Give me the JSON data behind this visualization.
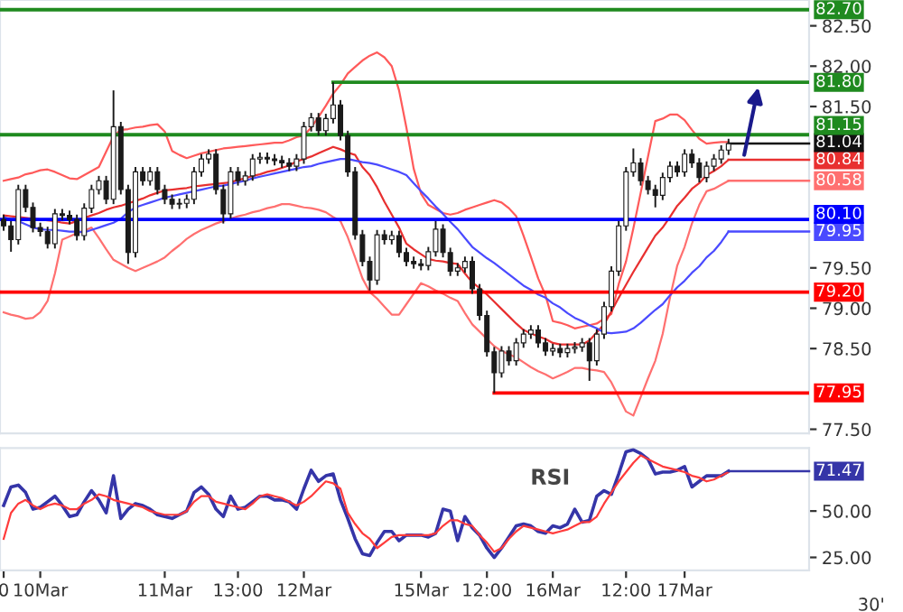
{
  "chart_data": [
    {
      "type": "candlestick",
      "tick_labels": "y",
      "categories": [
        null,
        null,
        null,
        null,
        null,
        null,
        null,
        null,
        null,
        null,
        null,
        null,
        null,
        null,
        null,
        null,
        null,
        null,
        null,
        null,
        null,
        null,
        null,
        null,
        null,
        null,
        null,
        null,
        null,
        null,
        null,
        null,
        null,
        null,
        null,
        null,
        null,
        null,
        null,
        null,
        null,
        null,
        null,
        null,
        null,
        null,
        null,
        null,
        null,
        null,
        null,
        null,
        null,
        null,
        null,
        null,
        null,
        null,
        null,
        null,
        null,
        null,
        null,
        null,
        null,
        null,
        null,
        null,
        null,
        null,
        null,
        null,
        null,
        null,
        null,
        null,
        null,
        null,
        null,
        null,
        null,
        null,
        null,
        null,
        null,
        null,
        null,
        null,
        null,
        null,
        null,
        null,
        null,
        null,
        null,
        null,
        null,
        null,
        null,
        null
      ],
      "ylim": [
        77.45,
        82.82
      ],
      "yticks": [
        {
          "value": 77.5,
          "label": "77.50"
        },
        {
          "value": 78.5,
          "label": "78.50"
        },
        {
          "value": 79.0,
          "label": "79.00"
        },
        {
          "value": 79.5,
          "label": "79.50"
        },
        {
          "value": 81.5,
          "label": "81.50"
        },
        {
          "value": 82.0,
          "label": "82.00"
        },
        {
          "value": 82.5,
          "label": "82.50"
        }
      ],
      "ohlc": [
        [
          80.1,
          80.16,
          79.96,
          80.02
        ],
        [
          80.02,
          80.08,
          79.7,
          79.85
        ],
        [
          79.85,
          80.53,
          79.79,
          80.47
        ],
        [
          80.47,
          80.53,
          80.19,
          80.25
        ],
        [
          80.25,
          80.31,
          79.94,
          80.0
        ],
        [
          80.0,
          80.06,
          79.89,
          79.95
        ],
        [
          79.95,
          80.01,
          79.74,
          79.8
        ],
        [
          79.8,
          80.23,
          79.74,
          80.17
        ],
        [
          80.17,
          80.23,
          80.09,
          80.15
        ],
        [
          80.15,
          80.21,
          80.04,
          80.1
        ],
        [
          80.1,
          80.16,
          79.84,
          79.9
        ],
        [
          79.9,
          80.3,
          79.84,
          80.24
        ],
        [
          80.24,
          80.53,
          80.18,
          80.47
        ],
        [
          80.47,
          80.64,
          80.41,
          80.58
        ],
        [
          80.58,
          80.64,
          80.29,
          80.35
        ],
        [
          80.35,
          81.7,
          80.29,
          81.25
        ],
        [
          81.25,
          81.31,
          80.41,
          80.47
        ],
        [
          80.47,
          80.53,
          79.55,
          79.69
        ],
        [
          79.69,
          80.75,
          79.63,
          80.69
        ],
        [
          80.69,
          80.75,
          80.52,
          80.58
        ],
        [
          80.58,
          80.75,
          80.52,
          80.69
        ],
        [
          80.69,
          80.75,
          80.41,
          80.47
        ],
        [
          80.47,
          80.53,
          80.29,
          80.35
        ],
        [
          80.35,
          80.41,
          80.23,
          80.29
        ],
        [
          80.29,
          80.36,
          80.23,
          80.3
        ],
        [
          80.3,
          80.41,
          80.24,
          80.35
        ],
        [
          80.35,
          80.75,
          80.29,
          80.69
        ],
        [
          80.69,
          80.91,
          80.63,
          80.85
        ],
        [
          80.85,
          80.97,
          80.79,
          80.91
        ],
        [
          80.91,
          80.97,
          80.41,
          80.47
        ],
        [
          80.47,
          80.53,
          80.05,
          80.17
        ],
        [
          80.17,
          80.75,
          80.11,
          80.69
        ],
        [
          80.69,
          80.75,
          80.52,
          80.58
        ],
        [
          80.58,
          80.7,
          80.52,
          80.64
        ],
        [
          80.64,
          80.91,
          80.58,
          80.85
        ],
        [
          80.85,
          80.93,
          80.79,
          80.87
        ],
        [
          80.87,
          80.93,
          80.79,
          80.85
        ],
        [
          80.85,
          80.91,
          80.77,
          80.83
        ],
        [
          80.83,
          80.89,
          80.74,
          80.8
        ],
        [
          80.8,
          80.86,
          80.7,
          80.76
        ],
        [
          80.76,
          80.91,
          80.7,
          80.85
        ],
        [
          80.85,
          81.31,
          80.79,
          81.25
        ],
        [
          81.25,
          81.42,
          81.19,
          81.36
        ],
        [
          81.36,
          81.42,
          81.14,
          81.2
        ],
        [
          81.2,
          81.41,
          81.14,
          81.35
        ],
        [
          81.35,
          81.8,
          81.29,
          81.52
        ],
        [
          81.52,
          81.58,
          81.08,
          81.14
        ],
        [
          81.14,
          81.2,
          80.63,
          80.69
        ],
        [
          80.69,
          80.75,
          79.85,
          79.91
        ],
        [
          79.91,
          79.97,
          79.52,
          79.58
        ],
        [
          79.58,
          79.64,
          79.22,
          79.35
        ],
        [
          79.35,
          79.97,
          79.29,
          79.91
        ],
        [
          79.91,
          79.97,
          79.79,
          79.85
        ],
        [
          79.85,
          79.96,
          79.79,
          79.9
        ],
        [
          79.9,
          79.96,
          79.63,
          79.69
        ],
        [
          79.69,
          79.75,
          79.52,
          79.58
        ],
        [
          79.58,
          79.64,
          79.49,
          79.55
        ],
        [
          79.55,
          79.61,
          79.47,
          79.53
        ],
        [
          79.53,
          79.76,
          79.47,
          79.7
        ],
        [
          79.7,
          80.08,
          79.64,
          79.98
        ],
        [
          79.98,
          80.04,
          79.63,
          79.69
        ],
        [
          79.69,
          79.75,
          79.4,
          79.46
        ],
        [
          79.46,
          79.56,
          79.4,
          79.5
        ],
        [
          79.5,
          79.64,
          79.44,
          79.58
        ],
        [
          79.58,
          79.64,
          79.18,
          79.24
        ],
        [
          79.24,
          79.3,
          78.85,
          78.91
        ],
        [
          78.91,
          78.97,
          78.4,
          78.46
        ],
        [
          78.46,
          78.52,
          77.95,
          78.2
        ],
        [
          78.2,
          78.53,
          78.14,
          78.47
        ],
        [
          78.47,
          78.53,
          78.29,
          78.35
        ],
        [
          78.35,
          78.63,
          78.29,
          78.57
        ],
        [
          78.57,
          78.74,
          78.51,
          78.68
        ],
        [
          78.68,
          78.79,
          78.62,
          78.73
        ],
        [
          78.73,
          78.79,
          78.51,
          78.57
        ],
        [
          78.57,
          78.63,
          78.41,
          78.47
        ],
        [
          78.47,
          78.56,
          78.41,
          78.5
        ],
        [
          78.5,
          78.56,
          78.39,
          78.45
        ],
        [
          78.45,
          78.56,
          78.39,
          78.5
        ],
        [
          78.5,
          78.58,
          78.44,
          78.52
        ],
        [
          78.52,
          78.63,
          78.46,
          78.57
        ],
        [
          78.57,
          78.63,
          78.1,
          78.35
        ],
        [
          78.35,
          78.74,
          78.29,
          78.68
        ],
        [
          78.68,
          79.08,
          78.62,
          79.02
        ],
        [
          79.02,
          79.52,
          78.96,
          79.46
        ],
        [
          79.46,
          80.08,
          79.4,
          80.02
        ],
        [
          80.02,
          80.75,
          79.96,
          80.69
        ],
        [
          80.69,
          80.98,
          80.63,
          80.8
        ],
        [
          80.8,
          80.86,
          80.52,
          80.58
        ],
        [
          80.58,
          80.64,
          80.41,
          80.47
        ],
        [
          80.47,
          80.53,
          80.25,
          80.4
        ],
        [
          80.4,
          80.68,
          80.34,
          80.62
        ],
        [
          80.62,
          80.82,
          80.56,
          80.76
        ],
        [
          80.76,
          80.82,
          80.63,
          80.69
        ],
        [
          80.69,
          80.97,
          80.63,
          80.91
        ],
        [
          80.91,
          80.97,
          80.74,
          80.8
        ],
        [
          80.8,
          80.86,
          80.56,
          80.62
        ],
        [
          80.62,
          80.82,
          80.56,
          80.76
        ],
        [
          80.76,
          80.91,
          80.7,
          80.85
        ],
        [
          80.85,
          81.02,
          80.79,
          80.96
        ],
        [
          80.96,
          81.1,
          80.9,
          81.04
        ]
      ],
      "series": [
        {
          "type": "line",
          "color": "#ff5a5a",
          "values": [
            80.58,
            80.6,
            80.62,
            80.66,
            80.68,
            80.71,
            80.72,
            80.69,
            80.65,
            80.61,
            80.6,
            80.65,
            80.7,
            80.75,
            80.94,
            81.13,
            81.21,
            81.22,
            81.24,
            81.25,
            81.27,
            81.28,
            81.19,
            80.95,
            80.9,
            80.86,
            80.89,
            80.92,
            80.94,
            80.96,
            80.98,
            80.99,
            81.0,
            81.01,
            81.02,
            81.03,
            81.04,
            81.05,
            81.05,
            81.08,
            81.12,
            81.14,
            81.24,
            81.37,
            81.51,
            81.66,
            81.77,
            81.91,
            81.99,
            82.07,
            82.13,
            82.17,
            82.11,
            82.0,
            81.7,
            81.24,
            80.73,
            80.42,
            80.28,
            80.23,
            80.18,
            80.16,
            80.18,
            80.22,
            80.25,
            80.28,
            80.31,
            80.34,
            80.31,
            80.24,
            80.14,
            79.9,
            79.64,
            79.37,
            79.16,
            78.84,
            78.82,
            78.79,
            78.75,
            78.77,
            78.79,
            78.81,
            78.87,
            78.93,
            79.3,
            79.58,
            79.99,
            80.43,
            80.88,
            81.32,
            81.35,
            81.4,
            81.4,
            81.33,
            81.21,
            81.1,
            81.04,
            81.05,
            81.06,
            81.06
          ]
        },
        {
          "type": "line",
          "color": "#e83030",
          "values": [
            80.15,
            80.14,
            80.13,
            80.12,
            80.11,
            80.1,
            80.09,
            80.08,
            80.06,
            80.05,
            80.08,
            80.12,
            80.15,
            80.18,
            80.22,
            80.25,
            80.27,
            80.3,
            80.33,
            80.36,
            80.4,
            80.43,
            80.46,
            80.47,
            80.48,
            80.49,
            80.51,
            80.52,
            80.53,
            80.54,
            80.55,
            80.56,
            80.59,
            80.61,
            80.64,
            80.66,
            80.69,
            80.71,
            80.74,
            80.77,
            80.82,
            80.85,
            80.88,
            80.92,
            80.96,
            81.0,
            80.97,
            80.93,
            80.9,
            80.75,
            80.65,
            80.5,
            80.32,
            80.16,
            80.0,
            79.8,
            79.73,
            79.67,
            79.61,
            79.59,
            79.58,
            79.56,
            79.55,
            79.43,
            79.32,
            79.25,
            79.17,
            79.08,
            78.99,
            78.9,
            78.81,
            78.73,
            78.69,
            78.65,
            78.62,
            78.57,
            78.55,
            78.55,
            78.55,
            78.55,
            78.6,
            78.7,
            78.8,
            78.96,
            79.13,
            79.29,
            79.45,
            79.6,
            79.75,
            79.9,
            80.0,
            80.13,
            80.27,
            80.37,
            80.48,
            80.55,
            80.65,
            80.7,
            80.76,
            80.84
          ],
          "value_labels": [
            null,
            null,
            null,
            null,
            null,
            null,
            null,
            null,
            null,
            null,
            null,
            null,
            null,
            null,
            null,
            null,
            null,
            null,
            null,
            null,
            null,
            null,
            null,
            null,
            null,
            null,
            null,
            null,
            null,
            null,
            null,
            null,
            null,
            null,
            null,
            null,
            null,
            null,
            null,
            null,
            null,
            null,
            null,
            null,
            null,
            null,
            null,
            null,
            null,
            null,
            null,
            null,
            null,
            null,
            null,
            null,
            null,
            null,
            null,
            null,
            null,
            null,
            null,
            null,
            null,
            null,
            null,
            null,
            null,
            null,
            null,
            null,
            null,
            null,
            null,
            null,
            null,
            null,
            null,
            null,
            null,
            null,
            null,
            null,
            null,
            null,
            null,
            null,
            null,
            null,
            null,
            null,
            null,
            null,
            null,
            null,
            null,
            null,
            null,
            "80.84"
          ]
        },
        {
          "type": "line",
          "color": "#ff7070",
          "values": [
            78.95,
            78.92,
            78.9,
            78.87,
            78.88,
            78.95,
            79.09,
            79.43,
            79.85,
            79.89,
            79.93,
            79.96,
            80.0,
            79.87,
            79.73,
            79.6,
            79.55,
            79.5,
            79.46,
            79.5,
            79.54,
            79.58,
            79.63,
            79.71,
            79.78,
            79.86,
            79.92,
            79.97,
            80.01,
            80.05,
            80.08,
            80.11,
            80.14,
            80.16,
            80.19,
            80.21,
            80.24,
            80.26,
            80.29,
            80.29,
            80.27,
            80.25,
            80.24,
            80.22,
            80.19,
            80.13,
            80.08,
            79.88,
            79.63,
            79.37,
            79.2,
            79.12,
            79.02,
            78.92,
            78.92,
            79.05,
            79.18,
            79.31,
            79.27,
            79.22,
            79.18,
            79.13,
            79.09,
            78.94,
            78.8,
            78.71,
            78.62,
            78.53,
            78.47,
            78.43,
            78.39,
            78.33,
            78.27,
            78.22,
            78.18,
            78.13,
            78.17,
            78.21,
            78.26,
            78.26,
            78.24,
            78.23,
            78.21,
            78.08,
            77.9,
            77.72,
            77.67,
            77.9,
            78.13,
            78.35,
            78.68,
            79.13,
            79.53,
            79.76,
            80.05,
            80.28,
            80.45,
            80.48,
            80.53,
            80.58
          ],
          "value_labels": [
            null,
            null,
            null,
            null,
            null,
            null,
            null,
            null,
            null,
            null,
            null,
            null,
            null,
            null,
            null,
            null,
            null,
            null,
            null,
            null,
            null,
            null,
            null,
            null,
            null,
            null,
            null,
            null,
            null,
            null,
            null,
            null,
            null,
            null,
            null,
            null,
            null,
            null,
            null,
            null,
            null,
            null,
            null,
            null,
            null,
            null,
            null,
            null,
            null,
            null,
            null,
            null,
            null,
            null,
            null,
            null,
            null,
            null,
            null,
            null,
            null,
            null,
            null,
            null,
            null,
            null,
            null,
            null,
            null,
            null,
            null,
            null,
            null,
            null,
            null,
            null,
            null,
            null,
            null,
            null,
            null,
            null,
            null,
            null,
            null,
            null,
            null,
            null,
            null,
            null,
            null,
            null,
            null,
            null,
            null,
            null,
            null,
            null,
            null,
            "80.58"
          ]
        },
        {
          "type": "line",
          "color": "#4a4aff",
          "values": [
            80.13,
            80.1,
            80.08,
            80.04,
            80.0,
            79.98,
            79.97,
            79.97,
            79.96,
            79.95,
            79.95,
            79.94,
            79.97,
            80.0,
            80.03,
            80.06,
            80.11,
            80.19,
            80.25,
            80.28,
            80.31,
            80.34,
            80.37,
            80.39,
            80.41,
            80.43,
            80.45,
            80.47,
            80.49,
            80.51,
            80.52,
            80.54,
            80.56,
            80.58,
            80.61,
            80.63,
            80.65,
            80.67,
            80.69,
            80.71,
            80.73,
            80.75,
            80.76,
            80.79,
            80.81,
            80.83,
            80.85,
            80.85,
            80.83,
            80.81,
            80.8,
            80.78,
            80.75,
            80.72,
            80.69,
            80.65,
            80.55,
            80.45,
            80.36,
            80.26,
            80.17,
            80.07,
            79.98,
            79.87,
            79.76,
            79.69,
            79.62,
            79.56,
            79.49,
            79.42,
            79.35,
            79.28,
            79.23,
            79.17,
            79.13,
            79.06,
            79.01,
            78.94,
            78.88,
            78.84,
            78.79,
            78.75,
            78.7,
            78.69,
            78.7,
            78.71,
            78.75,
            78.82,
            78.9,
            78.98,
            79.05,
            79.16,
            79.26,
            79.34,
            79.44,
            79.52,
            79.63,
            79.71,
            79.82,
            79.95
          ],
          "value_labels": [
            null,
            null,
            null,
            null,
            null,
            null,
            null,
            null,
            null,
            null,
            null,
            null,
            null,
            null,
            null,
            null,
            null,
            null,
            null,
            null,
            null,
            null,
            null,
            null,
            null,
            null,
            null,
            null,
            null,
            null,
            null,
            null,
            null,
            null,
            null,
            null,
            null,
            null,
            null,
            null,
            null,
            null,
            null,
            null,
            null,
            null,
            null,
            null,
            null,
            null,
            null,
            null,
            null,
            null,
            null,
            null,
            null,
            null,
            null,
            null,
            null,
            null,
            null,
            null,
            null,
            null,
            null,
            null,
            null,
            null,
            null,
            null,
            null,
            null,
            null,
            null,
            null,
            null,
            null,
            null,
            null,
            null,
            null,
            null,
            null,
            null,
            null,
            null,
            null,
            null,
            null,
            null,
            null,
            null,
            null,
            null,
            null,
            null,
            null,
            "79.95"
          ]
        }
      ],
      "ref_lines": [
        {
          "axis": "y",
          "value": 82.7,
          "label": "82.70",
          "color": "#1f8a1f"
        },
        {
          "axis": "y",
          "value": 81.8,
          "label": "81.80",
          "color": "#1f8a1f"
        },
        {
          "axis": "y",
          "value": 81.15,
          "label": "81.15",
          "color": "#1f8a1f"
        },
        {
          "axis": "y",
          "value": 80.1,
          "label": "80.10",
          "color": "#0000ff"
        },
        {
          "axis": "y",
          "value": 79.2,
          "label": "79.20",
          "color": "#ff0000"
        },
        {
          "axis": "y",
          "value": 77.95,
          "label": "77.95",
          "color": "#ff0000"
        }
      ],
      "annotations": [
        "81.04"
      ]
    },
    {
      "type": "line",
      "title": "RSI",
      "categories": [
        "0",
        null,
        null,
        null,
        null,
        "10Mar",
        null,
        null,
        null,
        null,
        null,
        null,
        null,
        null,
        null,
        null,
        null,
        null,
        null,
        null,
        null,
        null,
        "11Mar",
        null,
        null,
        null,
        null,
        null,
        null,
        null,
        null,
        null,
        "13:00",
        null,
        null,
        null,
        null,
        null,
        null,
        null,
        null,
        "12Mar",
        null,
        null,
        null,
        null,
        null,
        null,
        null,
        null,
        null,
        null,
        null,
        null,
        null,
        null,
        null,
        "15Mar",
        null,
        null,
        null,
        null,
        null,
        null,
        null,
        null,
        "12:00",
        null,
        null,
        null,
        null,
        null,
        null,
        null,
        null,
        "16Mar",
        null,
        null,
        null,
        null,
        null,
        null,
        null,
        null,
        null,
        "12:00",
        null,
        null,
        null,
        null,
        null,
        null,
        null,
        "17Mar",
        null,
        null,
        null,
        null,
        null,
        null
      ],
      "ylim": [
        18,
        84
      ],
      "yticks": [
        {
          "value": 25,
          "label": "25.00"
        },
        {
          "value": 50,
          "label": "50.00"
        }
      ],
      "series": [
        {
          "color": "#3535a8",
          "values": [
            53,
            63,
            64,
            60,
            51,
            52,
            55,
            58,
            53,
            47,
            48,
            55,
            61,
            56,
            49,
            69,
            46,
            51,
            54,
            53,
            51,
            48,
            47,
            46,
            48,
            50,
            60,
            63,
            59,
            51,
            47,
            58,
            51,
            52,
            55,
            58,
            58,
            56,
            56,
            55,
            51,
            62,
            72,
            66,
            69,
            70,
            56,
            46,
            35,
            27,
            26,
            33,
            39,
            39,
            34,
            37,
            37,
            37,
            36,
            38,
            51,
            50,
            34,
            47,
            41,
            37,
            30,
            25,
            30,
            36,
            42,
            43,
            42,
            39,
            38,
            42,
            41,
            43,
            51,
            44,
            45,
            58,
            61,
            59,
            70,
            82,
            83,
            81,
            78,
            70,
            71,
            71,
            72,
            74,
            63,
            66,
            69,
            69,
            69,
            71.47
          ],
          "value_labels": [
            null,
            null,
            null,
            null,
            null,
            null,
            null,
            null,
            null,
            null,
            null,
            null,
            null,
            null,
            null,
            null,
            null,
            null,
            null,
            null,
            null,
            null,
            null,
            null,
            null,
            null,
            null,
            null,
            null,
            null,
            null,
            null,
            null,
            null,
            null,
            null,
            null,
            null,
            null,
            null,
            null,
            null,
            null,
            null,
            null,
            null,
            null,
            null,
            null,
            null,
            null,
            null,
            null,
            null,
            null,
            null,
            null,
            null,
            null,
            null,
            null,
            null,
            null,
            null,
            null,
            null,
            null,
            null,
            null,
            null,
            null,
            null,
            null,
            null,
            null,
            null,
            null,
            null,
            null,
            null,
            null,
            null,
            null,
            null,
            null,
            null,
            null,
            null,
            null,
            null,
            null,
            null,
            null,
            null,
            null,
            null,
            null,
            null,
            null,
            "71.47"
          ]
        },
        {
          "color": "#ff3b3b",
          "values": [
            35,
            49,
            54,
            56,
            53,
            51,
            53,
            54,
            53,
            51,
            51,
            54,
            56,
            59,
            58,
            56,
            55,
            54,
            53,
            52,
            50,
            49,
            48,
            48,
            48,
            50,
            55,
            58,
            58,
            55,
            54,
            53,
            52,
            51,
            54,
            58,
            59,
            58,
            57,
            55,
            53,
            55,
            58,
            62,
            66,
            65,
            62,
            49,
            43,
            38,
            35,
            30,
            33,
            36,
            37,
            37,
            37,
            37,
            37,
            38,
            42,
            45,
            45,
            43,
            42,
            37,
            33,
            28,
            30,
            35,
            39,
            42,
            41,
            40,
            39,
            38,
            39,
            40,
            42,
            44,
            44,
            47,
            54,
            60,
            66,
            71,
            76,
            80,
            78,
            76,
            74,
            73,
            72,
            71,
            69,
            68,
            66,
            67,
            69,
            71
          ]
        }
      ],
      "annotations": [
        "30'"
      ]
    }
  ]
}
